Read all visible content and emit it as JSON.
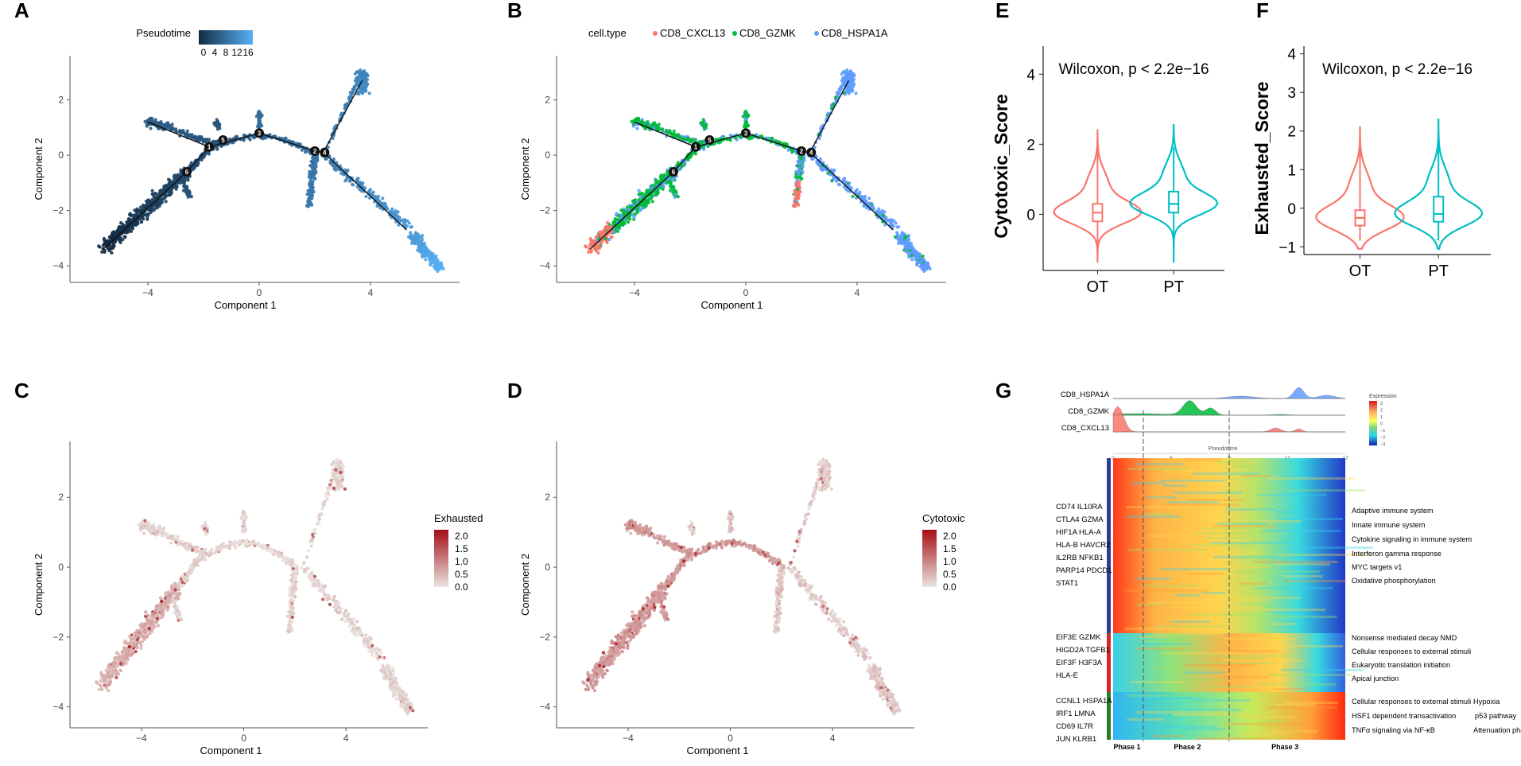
{
  "panel_letters": {
    "A": "A",
    "B": "B",
    "C": "C",
    "D": "D",
    "E": "E",
    "F": "F",
    "G": "G"
  },
  "colors": {
    "pt_low": "#132b43",
    "pt_high": "#56b1f7",
    "cxcl13": "#f8766d",
    "gzmk": "#00ba38",
    "hspa1a": "#619cff",
    "heat_low": "#e8e3e0",
    "heat_high": "#a50f15",
    "violin_ot": "#f8766d",
    "violin_pt": "#00bfc4"
  },
  "chart_data": [
    {
      "id": "A",
      "type": "scatter",
      "title": "",
      "xlabel": "Component 1",
      "ylabel": "Component 2",
      "xlim": [
        -6.8,
        7.2
      ],
      "ylim": [
        -4.6,
        3.6
      ],
      "xticks": [
        "−4",
        "0",
        "4"
      ],
      "yticks": [
        "2",
        "0",
        "−2",
        "−4"
      ],
      "legend": {
        "title": "Pseudotime",
        "ticks": [
          "0",
          "4",
          "8",
          "12",
          "16"
        ],
        "position": "top"
      },
      "color_by": "pseudotime",
      "branch_points": [
        "1",
        "2",
        "3",
        "4",
        "5",
        "6"
      ]
    },
    {
      "id": "B",
      "type": "scatter",
      "xlabel": "Component 1",
      "ylabel": "Component 2",
      "xlim": [
        -6.8,
        7.2
      ],
      "ylim": [
        -4.6,
        3.6
      ],
      "xticks": [
        "−4",
        "0",
        "4"
      ],
      "yticks": [
        "2",
        "0",
        "−2",
        "−4"
      ],
      "legend": {
        "title": "cell.type",
        "entries": [
          "CD8_CXCL13",
          "CD8_GZMK",
          "CD8_HSPA1A"
        ],
        "position": "top"
      },
      "color_by": "cell.type"
    },
    {
      "id": "C",
      "type": "scatter",
      "xlabel": "Component 1",
      "ylabel": "Component 2",
      "xlim": [
        -6.8,
        7.2
      ],
      "ylim": [
        -4.6,
        3.6
      ],
      "xticks": [
        "−4",
        "0",
        "4"
      ],
      "yticks": [
        "2",
        "0",
        "−2",
        "−4"
      ],
      "legend": {
        "title": "Exhausted",
        "ticks": [
          "2.0",
          "1.5",
          "1.0",
          "0.5",
          "0.0"
        ],
        "position": "right"
      },
      "color_by": "Exhausted"
    },
    {
      "id": "D",
      "type": "scatter",
      "xlabel": "Component 1",
      "ylabel": "Component 2",
      "xlim": [
        -6.8,
        7.2
      ],
      "ylim": [
        -4.6,
        3.6
      ],
      "xticks": [
        "−4",
        "0",
        "4"
      ],
      "yticks": [
        "2",
        "0",
        "−2",
        "−4"
      ],
      "legend": {
        "title": "Cytotoxic",
        "ticks": [
          "2.0",
          "1.5",
          "1.0",
          "0.5",
          "0.0"
        ],
        "position": "right"
      },
      "color_by": "Cytotoxic"
    },
    {
      "id": "E",
      "type": "violin",
      "ylabel": "Cytotoxic_Score",
      "annotation": "Wilcoxon, p < 2.2e−16",
      "categories": [
        "OT",
        "PT"
      ],
      "ylim": [
        -1.6,
        4.8
      ],
      "yticks": [
        "4",
        "2",
        "0"
      ],
      "box": [
        {
          "q1": -0.2,
          "median": 0.05,
          "q3": 0.3
        },
        {
          "q1": 0.05,
          "median": 0.3,
          "q3": 0.65
        }
      ]
    },
    {
      "id": "F",
      "type": "violin",
      "ylabel": "Exhausted_Score",
      "annotation": "Wilcoxon, p < 2.2e−16",
      "categories": [
        "OT",
        "PT"
      ],
      "ylim": [
        -1.2,
        4.2
      ],
      "yticks": [
        "4",
        "3",
        "2",
        "1",
        "0",
        "−1"
      ],
      "box": [
        {
          "q1": -0.45,
          "median": -0.25,
          "q3": -0.05
        },
        {
          "q1": -0.35,
          "median": -0.15,
          "q3": 0.3
        }
      ]
    },
    {
      "id": "G",
      "type": "heatmap",
      "density_tracks": [
        "CD8_HSPA1A",
        "CD8_GZMK",
        "CD8_CXCL13"
      ],
      "axis_title": "Pseudotime",
      "axis_ticks": [
        "0",
        "5",
        "9",
        "13",
        "17"
      ],
      "legend_title": "Expression",
      "legend_ticks": [
        "3",
        "2",
        "1",
        "0",
        "−1",
        "−2",
        "−3"
      ],
      "phases": [
        "Phase 1",
        "Phase 2",
        "Phase 3"
      ],
      "gene_groups": [
        {
          "genes": [
            "CD74 IL10RA",
            "CTLA4 GZMA",
            "HIF1A HLA-A",
            "HLA-B HAVCR2",
            "IL2RB NFKB1",
            "PARP14 PDCD1",
            "STAT1"
          ],
          "color": "#2c3e8f"
        },
        {
          "genes": [
            "EIF3E GZMK",
            "HIGD2A TGFB1",
            "EIF3F H3F3A",
            "HLA-E"
          ],
          "color": "#d62728"
        },
        {
          "genes": [
            "CCNL1 HSPA1A",
            "IRF1 LMNA",
            "CD69 IL7R",
            "JUN KLRB1"
          ],
          "color": "#2a7a2a"
        }
      ],
      "pathways": [
        "Adaptive immune system",
        "Innate immune system",
        "Cytokine signaling in immune system",
        "Interferon gamma response",
        "MYC targets v1",
        "Oxidative phosphorylation",
        "Nonsense mediated decay NMD",
        "Cellular responses to external stimuli",
        "Eukaryotic translation initiation",
        "Apical junction",
        "Cellular responses to external stimuli",
        "HSF1 dependent transactivation",
        "TNFα signaling via NF-κB"
      ],
      "pathways_right": [
        "Hypoxia",
        "p53 pathway",
        "Attenuation phase"
      ]
    }
  ]
}
